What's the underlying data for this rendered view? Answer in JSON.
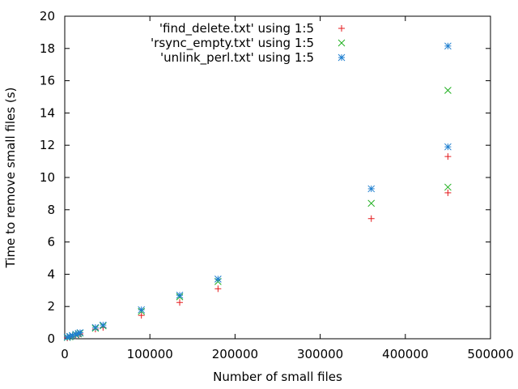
{
  "chart_data": {
    "type": "scatter",
    "title": "",
    "xlabel": "Number of small files",
    "ylabel": "Time to remove small files (s)",
    "xlim": [
      0,
      500000
    ],
    "ylim": [
      0,
      20
    ],
    "x_ticks": [
      0,
      100000,
      200000,
      300000,
      400000,
      500000
    ],
    "x_tick_labels": [
      "0",
      "100000",
      "200000",
      "300000",
      "400000",
      "500000"
    ],
    "y_ticks": [
      0,
      2,
      4,
      6,
      8,
      10,
      12,
      14,
      16,
      18,
      20
    ],
    "y_tick_labels": [
      "0",
      "2",
      "4",
      "6",
      "8",
      "10",
      "12",
      "14",
      "16",
      "18",
      "20"
    ],
    "grid": false,
    "legend_position": "top-center",
    "series": [
      {
        "name": "'find_delete.txt' using 1:5",
        "marker": "plus",
        "color": "#e41a1c",
        "points": [
          [
            3000,
            0.05
          ],
          [
            6000,
            0.1
          ],
          [
            9000,
            0.15
          ],
          [
            13000,
            0.2
          ],
          [
            16000,
            0.25
          ],
          [
            18000,
            0.3
          ],
          [
            36000,
            0.6
          ],
          [
            45000,
            0.7
          ],
          [
            90000,
            1.45
          ],
          [
            135000,
            2.25
          ],
          [
            180000,
            3.1
          ],
          [
            360000,
            7.45
          ],
          [
            450000,
            9.05
          ],
          [
            450000,
            11.3
          ]
        ]
      },
      {
        "name": "'rsync_empty.txt' using 1:5",
        "marker": "cross",
        "color": "#20b020",
        "points": [
          [
            3000,
            0.08
          ],
          [
            6000,
            0.12
          ],
          [
            9000,
            0.18
          ],
          [
            13000,
            0.25
          ],
          [
            16000,
            0.3
          ],
          [
            18000,
            0.35
          ],
          [
            36000,
            0.65
          ],
          [
            45000,
            0.8
          ],
          [
            90000,
            1.7
          ],
          [
            135000,
            2.6
          ],
          [
            180000,
            3.55
          ],
          [
            360000,
            8.4
          ],
          [
            450000,
            9.4
          ],
          [
            450000,
            15.4
          ]
        ]
      },
      {
        "name": "'unlink_perl.txt' using 1:5",
        "marker": "star",
        "color": "#1f7fd0",
        "points": [
          [
            3000,
            0.1
          ],
          [
            6000,
            0.15
          ],
          [
            9000,
            0.2
          ],
          [
            13000,
            0.28
          ],
          [
            16000,
            0.33
          ],
          [
            18000,
            0.38
          ],
          [
            36000,
            0.7
          ],
          [
            45000,
            0.85
          ],
          [
            90000,
            1.8
          ],
          [
            135000,
            2.7
          ],
          [
            180000,
            3.7
          ],
          [
            360000,
            9.3
          ],
          [
            450000,
            11.9
          ],
          [
            450000,
            18.15
          ]
        ]
      }
    ]
  }
}
